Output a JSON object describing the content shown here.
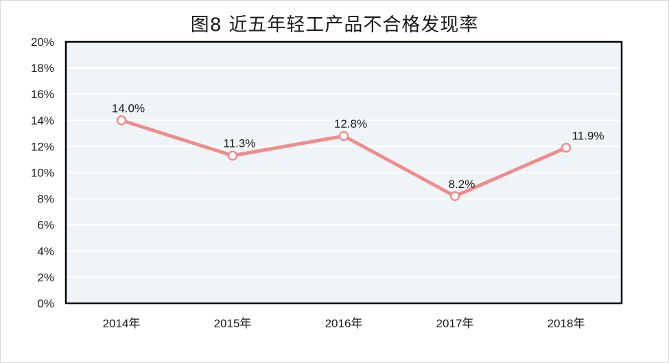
{
  "chart_data": {
    "type": "line",
    "title": "图8 近五年轻工产品不合格发现率",
    "categories": [
      "2014年",
      "2015年",
      "2016年",
      "2017年",
      "2018年"
    ],
    "series": [
      {
        "name": "不合格发现率",
        "values": [
          14.0,
          11.3,
          12.8,
          8.2,
          11.9
        ],
        "color": "#f08c8c"
      }
    ],
    "data_labels": [
      "14.0%",
      "11.3%",
      "12.8%",
      "8.2%",
      "11.9%"
    ],
    "xlabel": "",
    "ylabel": "",
    "ylim": [
      0,
      20
    ],
    "yticks": [
      0,
      2,
      4,
      6,
      8,
      10,
      12,
      14,
      16,
      18,
      20
    ],
    "ytick_labels": [
      "0%",
      "2%",
      "4%",
      "6%",
      "8%",
      "10%",
      "12%",
      "14%",
      "16%",
      "18%",
      "20%"
    ],
    "grid": true,
    "legend": "none",
    "plot_background": "#eef4f7",
    "grid_color": "#ffffff",
    "marker": "circle-hollow-white"
  }
}
